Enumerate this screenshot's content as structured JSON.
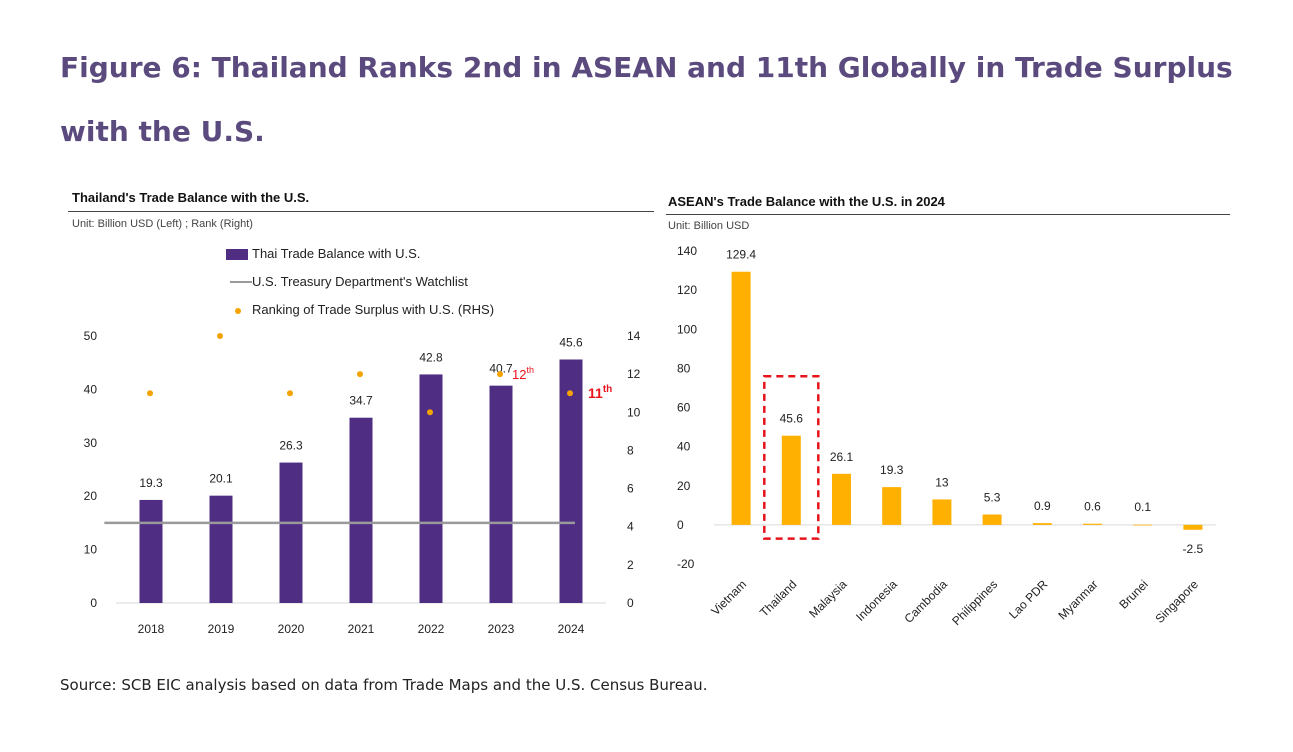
{
  "figure_title": "Figure 6: Thailand Ranks 2nd in ASEAN and 11th Globally in Trade Surplus with the U.S.",
  "source": "Source: SCB EIC analysis based on data from Trade Maps and the U.S. Census Bureau.",
  "colors": {
    "title": "#5a4a7e",
    "thai_bar": "#4f2d83",
    "watchlist": "#9a9a9a",
    "rank_dot": "#f5a300",
    "asean_bar": "#ffb000",
    "highlight": "#e8141c"
  },
  "chart_data": [
    {
      "type": "bar",
      "title": "Thailand's Trade Balance with the U.S.",
      "unit": "Unit: Billion USD (Left) ; Rank (Right)",
      "categories": [
        "2018",
        "2019",
        "2020",
        "2021",
        "2022",
        "2023",
        "2024"
      ],
      "series": [
        {
          "name": "Thai Trade Balance with U.S.",
          "type": "bar",
          "axis": "left",
          "values": [
            19.3,
            20.1,
            26.3,
            34.7,
            42.8,
            40.7,
            45.6
          ],
          "labels": [
            "19.3",
            "20.1",
            "26.3",
            "34.7",
            "42.8",
            "40.7",
            "45.6"
          ]
        },
        {
          "name": "U.S. Treasury Department's Watchlist",
          "type": "line",
          "axis": "left",
          "values": [
            15,
            15,
            15,
            15,
            15,
            15,
            15
          ]
        },
        {
          "name": "Ranking of Trade Surplus with U.S. (RHS)",
          "type": "scatter",
          "axis": "right",
          "values": [
            11,
            14,
            11,
            12,
            10,
            12,
            11
          ]
        }
      ],
      "annotations": [
        {
          "category": "2023",
          "base": "12",
          "sup": "th"
        },
        {
          "category": "2024",
          "base": "11",
          "sup": "th"
        }
      ],
      "ylim": [
        0,
        50
      ],
      "yticks": [
        "0",
        "10",
        "20",
        "30",
        "40",
        "50"
      ],
      "y2lim": [
        0,
        14
      ],
      "y2ticks": [
        "0",
        "2",
        "4",
        "6",
        "8",
        "10",
        "12",
        "14"
      ],
      "legend": "top",
      "grid": false
    },
    {
      "type": "bar",
      "title": "ASEAN's Trade Balance with the U.S. in 2024",
      "unit": "Unit: Billion USD",
      "categories": [
        "Vietnam",
        "Thailand",
        "Malaysia",
        "Indonesia",
        "Cambodia",
        "Philippines",
        "Lao PDR",
        "Myanmar",
        "Brunei",
        "Singapore"
      ],
      "values": [
        129.4,
        45.6,
        26.1,
        19.3,
        13,
        5.3,
        0.9,
        0.6,
        0.1,
        -2.5
      ],
      "labels": [
        "129.4",
        "45.6",
        "26.1",
        "19.3",
        "13",
        "5.3",
        "0.9",
        "0.6",
        "0.1",
        "-2.5"
      ],
      "highlight": "Thailand",
      "ylim": [
        -20,
        140
      ],
      "yticks": [
        "-20",
        "0",
        "20",
        "40",
        "60",
        "80",
        "100",
        "120",
        "140"
      ],
      "grid": false
    }
  ]
}
